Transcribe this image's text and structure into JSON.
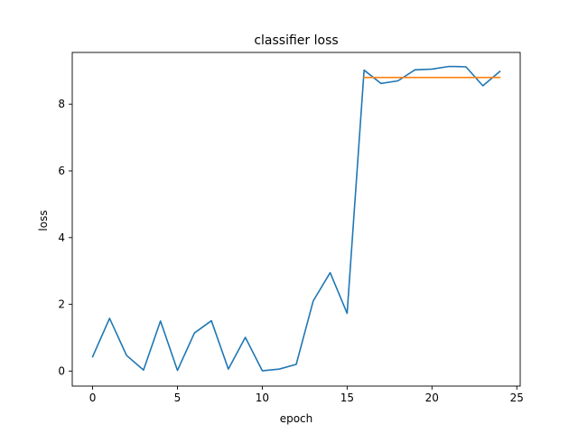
{
  "chart_data": {
    "type": "line",
    "title": "classifier loss",
    "xlabel": "epoch",
    "ylabel": "loss",
    "xlim": [
      -1.2,
      25.2
    ],
    "ylim": [
      -0.45,
      9.55
    ],
    "xticks": [
      0,
      5,
      10,
      15,
      20,
      25
    ],
    "yticks": [
      0,
      2,
      4,
      6,
      8
    ],
    "grid": false,
    "series": [
      {
        "color": "#1f77b4",
        "x": [
          0,
          1,
          2,
          3,
          4,
          5,
          6,
          7,
          8,
          9,
          10,
          11,
          12,
          13,
          14,
          15,
          16,
          17,
          18,
          19,
          20,
          21,
          22,
          23,
          24
        ],
        "y": [
          0.43,
          1.58,
          0.47,
          0.03,
          1.5,
          0.02,
          1.14,
          1.51,
          0.06,
          1.01,
          0.01,
          0.06,
          0.2,
          2.1,
          2.95,
          1.73,
          9.02,
          8.62,
          8.7,
          9.03,
          9.05,
          9.13,
          9.12,
          8.55,
          8.98
        ]
      },
      {
        "color": "#ff7f0e",
        "x": [
          16,
          24
        ],
        "y": [
          8.8,
          8.8
        ]
      }
    ]
  }
}
